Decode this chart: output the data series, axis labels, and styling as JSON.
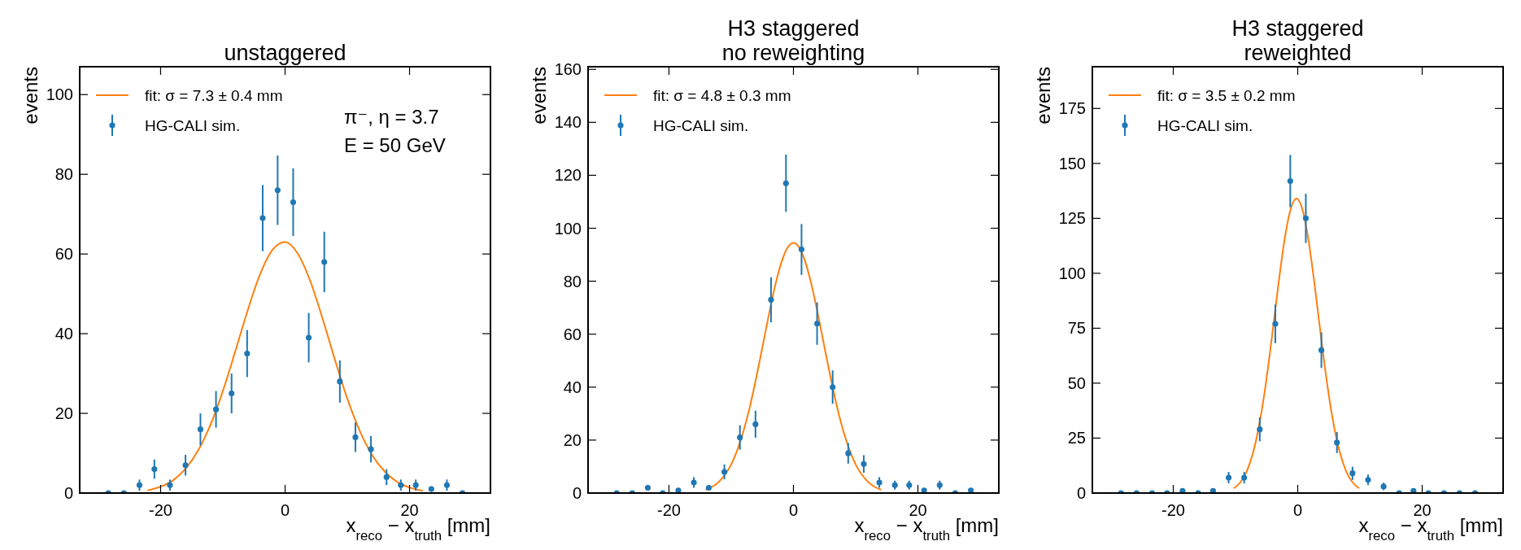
{
  "chart_data": [
    {
      "type": "scatter",
      "title": "unstaggered",
      "xlabel": "x$_{reco}$ − x$_{truth}$ [mm]",
      "ylabel": "events",
      "xlim": [
        -33,
        33
      ],
      "xticks": [
        -20,
        0,
        20
      ],
      "ylim": [
        0,
        107
      ],
      "yticks": [
        0,
        20,
        40,
        60,
        80,
        100
      ],
      "legend": "top left",
      "annotations": [
        "π⁻, η = 3.7",
        "E = 50 GeV"
      ],
      "series": [
        {
          "type": "line",
          "name": "fit: σ = 7.3 ± 0.4 mm",
          "color": "#ff7f0e",
          "x": [
            -22,
            -20,
            -18,
            -16,
            -14,
            -12,
            -10,
            -8,
            -6,
            -4,
            -2,
            0,
            2,
            4,
            6,
            8,
            10,
            12,
            14,
            16,
            18,
            20,
            22
          ],
          "values": [
            0.7,
            1.6,
            3.2,
            6.1,
            10.6,
            17.1,
            25.6,
            35.6,
            45.9,
            55.0,
            61.1,
            63.0,
            60.2,
            53.4,
            43.9,
            33.5,
            23.7,
            15.6,
            9.5,
            5.4,
            2.8,
            1.4,
            0.6
          ]
        },
        {
          "name": "HG-CALI sim.",
          "color": "#1f77b4",
          "marker": "circle",
          "x": [
            -28.4,
            -25.9,
            -23.4,
            -21,
            -18.5,
            -16,
            -13.6,
            -11.1,
            -8.6,
            -6.1,
            -3.6,
            -1.2,
            1.3,
            3.8,
            6.3,
            8.8,
            11.3,
            13.8,
            16.3,
            18.6,
            21,
            23.5,
            26,
            28.5
          ],
          "values": [
            0,
            0,
            2,
            6,
            2,
            7,
            16,
            21,
            25,
            35,
            69,
            76,
            73,
            39,
            58,
            28,
            14,
            11,
            4,
            2,
            2,
            1,
            2,
            0
          ],
          "errors": [
            null,
            null,
            1.4,
            2.4,
            1.4,
            2.6,
            4,
            4.6,
            5,
            5.9,
            8.3,
            8.7,
            8.5,
            6.2,
            7.6,
            5.3,
            3.7,
            3.3,
            2,
            1.4,
            1.4,
            null,
            1.4,
            null
          ]
        }
      ]
    },
    {
      "type": "scatter",
      "title": "H3 staggered\nno reweighting",
      "xlabel": "x$_{reco}$ − x$_{truth}$ [mm]",
      "ylabel": "events",
      "xlim": [
        -33,
        33
      ],
      "xticks": [
        -20,
        0,
        20
      ],
      "ylim": [
        0,
        161
      ],
      "yticks": [
        0,
        20,
        40,
        60,
        80,
        100,
        120,
        140,
        160
      ],
      "legend": "top left",
      "series": [
        {
          "type": "line",
          "name": "fit: σ = 4.8 ± 0.3 mm",
          "color": "#ff7f0e",
          "x": [
            -14,
            -12,
            -10,
            -9,
            -8,
            -7,
            -6,
            -5,
            -4,
            -3,
            -2,
            -1,
            0,
            1,
            2,
            3,
            4,
            5,
            6,
            7,
            8,
            9,
            10,
            12,
            14
          ],
          "values": [
            1.3,
            4.2,
            10.8,
            16.3,
            23.6,
            32.6,
            43.3,
            54.9,
            66.8,
            77.7,
            86.6,
            92.5,
            94.5,
            92.5,
            86.6,
            77.7,
            66.8,
            54.9,
            43.3,
            32.6,
            23.6,
            16.3,
            10.8,
            4.2,
            1.3
          ]
        },
        {
          "name": "HG-CALI sim.",
          "color": "#1f77b4",
          "marker": "circle",
          "x": [
            -28.4,
            -25.9,
            -23.4,
            -21,
            -18.5,
            -16,
            -13.6,
            -11.1,
            -8.6,
            -6.1,
            -3.6,
            -1.2,
            1.3,
            3.8,
            6.3,
            8.8,
            11.3,
            13.8,
            16.3,
            18.6,
            21,
            23.5,
            26,
            28.5
          ],
          "values": [
            0,
            0,
            2,
            0,
            1,
            4,
            2,
            8,
            21,
            26,
            73,
            117,
            92,
            64,
            40,
            15,
            11,
            4,
            3,
            3,
            1,
            3,
            0,
            1
          ],
          "errors": [
            null,
            null,
            null,
            null,
            null,
            2,
            null,
            2.8,
            4.6,
            5.1,
            8.5,
            10.8,
            9.6,
            8,
            6.3,
            3.9,
            3.3,
            2,
            1.7,
            1.7,
            null,
            1.7,
            null,
            null
          ]
        }
      ]
    },
    {
      "type": "scatter",
      "title": "H3 staggered\nreweighted",
      "xlabel": "x$_{reco}$ − x$_{truth}$ [mm]",
      "ylabel": "events",
      "xlim": [
        -33,
        33
      ],
      "xticks": [
        -20,
        0,
        20
      ],
      "ylim": [
        0,
        194
      ],
      "yticks": [
        0,
        25,
        50,
        75,
        100,
        125,
        150,
        175
      ],
      "legend": "top left",
      "series": [
        {
          "type": "line",
          "name": "fit: σ = 3.5 ± 0.2 mm",
          "color": "#ff7f0e",
          "x": [
            -10.2,
            -9.2,
            -8.2,
            -7.2,
            -6.2,
            -5.2,
            -4.2,
            -3.2,
            -2.2,
            -1.2,
            -0.2,
            0.8,
            1.8,
            2.8,
            3.8,
            4.8,
            5.8,
            6.8,
            7.8,
            8.8,
            9.8
          ],
          "values": [
            2.3,
            4.9,
            9.8,
            18.1,
            30.8,
            48.3,
            69.7,
            92.8,
            113.8,
            128.6,
            134,
            128.6,
            113.8,
            92.8,
            69.7,
            48.3,
            30.8,
            18.1,
            9.8,
            4.9,
            2.3
          ]
        },
        {
          "name": "HG-CALI sim.",
          "color": "#1f77b4",
          "marker": "circle",
          "x": [
            -28.4,
            -25.9,
            -23.4,
            -21,
            -18.5,
            -16,
            -13.6,
            -11.1,
            -8.6,
            -6.1,
            -3.6,
            -1.2,
            1.3,
            3.8,
            6.3,
            8.8,
            11.3,
            13.8,
            16.3,
            18.6,
            21,
            23.5,
            26,
            28.5
          ],
          "values": [
            0,
            0,
            0,
            0,
            1,
            0,
            1,
            7,
            7,
            29,
            77,
            142,
            125,
            65,
            23,
            9,
            6,
            3,
            0,
            1,
            0,
            0,
            0,
            0
          ],
          "errors": [
            null,
            null,
            null,
            null,
            null,
            null,
            null,
            2.6,
            2.6,
            5.4,
            8.8,
            11.9,
            11.2,
            8.1,
            4.8,
            3,
            2.4,
            1.7,
            null,
            null,
            null,
            null,
            null,
            null
          ]
        }
      ]
    }
  ]
}
